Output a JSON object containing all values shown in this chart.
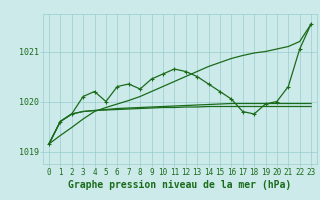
{
  "title": "Graphe pression niveau de la mer (hPa)",
  "hours": [
    0,
    1,
    2,
    3,
    4,
    5,
    6,
    7,
    8,
    9,
    10,
    11,
    12,
    13,
    14,
    15,
    16,
    17,
    18,
    19,
    20,
    21,
    22,
    23
  ],
  "main_y": [
    1019.15,
    1019.6,
    1019.75,
    1020.1,
    1020.2,
    1020.0,
    1020.3,
    1020.35,
    1020.25,
    1020.45,
    1020.55,
    1020.65,
    1020.6,
    1020.5,
    1020.35,
    1020.2,
    1020.05,
    1019.8,
    1019.75,
    1019.95,
    1020.0,
    1020.3,
    1021.05,
    1021.55
  ],
  "diagonal_y": [
    1019.15,
    1019.32,
    1019.48,
    1019.65,
    1019.8,
    1019.88,
    1019.95,
    1020.02,
    1020.1,
    1020.2,
    1020.3,
    1020.4,
    1020.5,
    1020.6,
    1020.7,
    1020.78,
    1020.86,
    1020.92,
    1020.97,
    1021.0,
    1021.05,
    1021.1,
    1021.2,
    1021.55
  ],
  "flat1_y": [
    1019.15,
    1019.6,
    1019.75,
    1019.8,
    1019.82,
    1019.83,
    1019.84,
    1019.85,
    1019.86,
    1019.87,
    1019.88,
    1019.88,
    1019.89,
    1019.89,
    1019.9,
    1019.9,
    1019.9,
    1019.9,
    1019.9,
    1019.9,
    1019.9,
    1019.9,
    1019.9,
    1019.9
  ],
  "flat2_y": [
    1019.15,
    1019.6,
    1019.75,
    1019.8,
    1019.82,
    1019.84,
    1019.86,
    1019.87,
    1019.88,
    1019.89,
    1019.9,
    1019.91,
    1019.92,
    1019.93,
    1019.94,
    1019.95,
    1019.96,
    1019.96,
    1019.96,
    1019.96,
    1019.96,
    1019.96,
    1019.96,
    1019.96
  ],
  "ylim": [
    1018.75,
    1021.75
  ],
  "yticks": [
    1019,
    1020,
    1021
  ],
  "bg_color": "#cceaea",
  "grid_color": "#99cccc",
  "line_color": "#1a6b1a",
  "title_color": "#1a6b1a",
  "title_fontsize": 7.0,
  "tick_fontsize": 5.5
}
